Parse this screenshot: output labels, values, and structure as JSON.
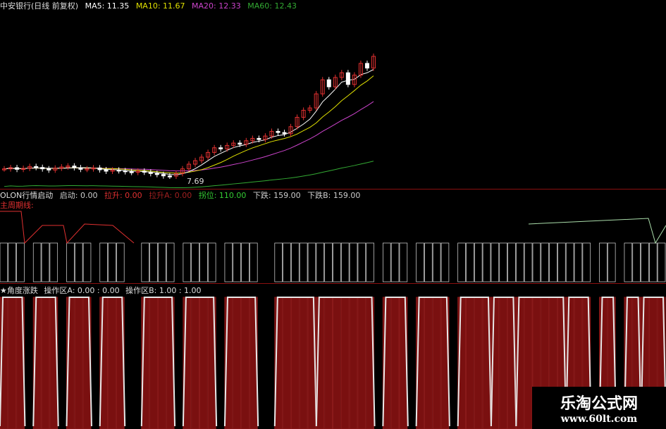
{
  "header": {
    "name": "中安银行(日线 前复权)",
    "ma5": "MA5: 11.35",
    "ma10": "MA10: 11.67",
    "ma20": "MA20: 12.33",
    "ma60": "MA60: 12.43"
  },
  "panel2": {
    "title": "OLON行情启动",
    "items": [
      "启动: 0.00",
      "拉升: 0.00",
      "拉升A: 0.00",
      "拐位: 110.00",
      "下跌: 159.00",
      "下跌B: 159.00"
    ]
  },
  "panel3": {
    "title": "主周期线:"
  },
  "panel4": {
    "title": "★角度涨跌",
    "items": [
      "操作区A: 0.00 : 0.00",
      "操作区B: 1.00 : 1.00"
    ]
  },
  "price_low_label": "7.69",
  "watermark": {
    "title": "乐淘公式网",
    "url": "www.60lt.com"
  },
  "colors": {
    "up": "#e03030",
    "down": "#ffffff",
    "ma5": "#ffffff",
    "ma10": "#e0e000",
    "ma20": "#cc44cc",
    "ma60": "#33aa33",
    "signal": "#e8e8e8",
    "bar": "#7a1010"
  },
  "chart_data": {
    "type": "candlestick",
    "closes": [
      8.0,
      8.05,
      7.98,
      8.02,
      8.1,
      8.06,
      8.0,
      7.95,
      8.03,
      8.08,
      8.12,
      8.05,
      7.98,
      8.0,
      8.04,
      7.96,
      7.9,
      7.95,
      7.92,
      7.88,
      7.85,
      7.9,
      7.86,
      7.8,
      7.76,
      7.7,
      7.69,
      7.8,
      8.0,
      8.2,
      8.35,
      8.5,
      8.7,
      8.9,
      8.85,
      9.0,
      9.1,
      9.05,
      9.2,
      9.3,
      9.25,
      9.4,
      9.6,
      9.55,
      9.5,
      9.8,
      10.2,
      10.5,
      10.6,
      11.2,
      11.8,
      11.5,
      11.9,
      12.1,
      11.6,
      12.0,
      12.5,
      12.3,
      12.8
    ],
    "series": [
      "MA5",
      "MA10",
      "MA20",
      "MA60"
    ],
    "signal_zones": [
      [
        0,
        2
      ],
      [
        4,
        6
      ],
      [
        8,
        10
      ],
      [
        12,
        14
      ],
      [
        17,
        20
      ],
      [
        22,
        25
      ],
      [
        27,
        30
      ],
      [
        33,
        37
      ],
      [
        38,
        44
      ],
      [
        46,
        48
      ],
      [
        50,
        53
      ],
      [
        55,
        58
      ],
      [
        59,
        61
      ],
      [
        62,
        67
      ],
      [
        68,
        70
      ],
      [
        72,
        73
      ],
      [
        75,
        76
      ],
      [
        77,
        79
      ]
    ]
  }
}
